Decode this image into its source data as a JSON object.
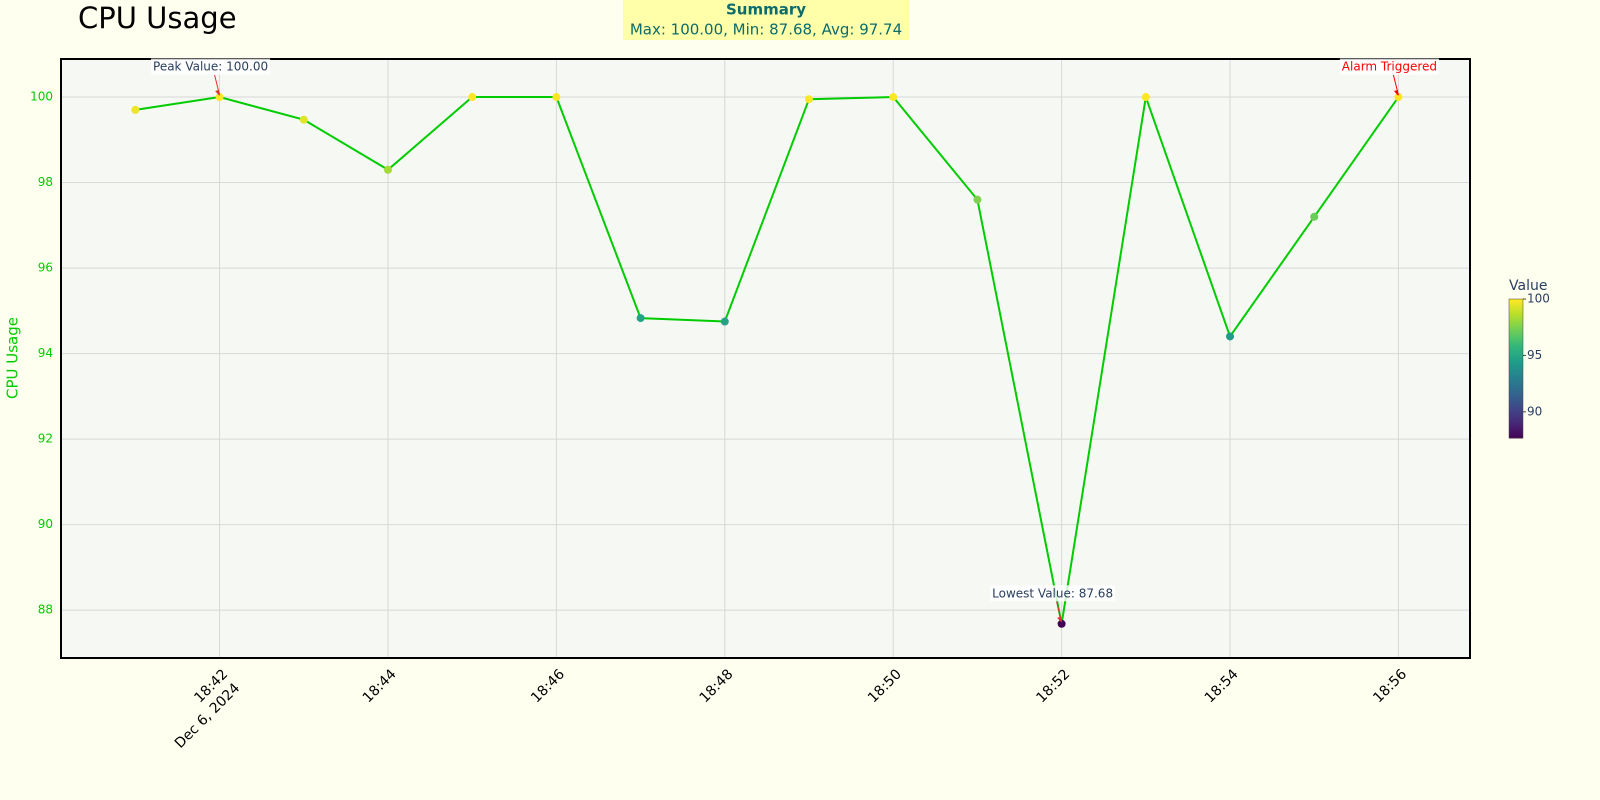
{
  "chart_data": {
    "type": "line",
    "title": "CPU Usage",
    "summary": {
      "title": "Summary",
      "text": "Max: 100.00, Min: 87.68, Avg: 97.74"
    },
    "y_label": "CPU Usage",
    "x": [
      "18:41",
      "18:42",
      "18:43",
      "18:44",
      "18:45",
      "18:46",
      "18:47",
      "18:48",
      "18:49",
      "18:50",
      "18:51",
      "18:52",
      "18:53",
      "18:54",
      "18:55",
      "18:56"
    ],
    "x_date_label": "Dec 6, 2024",
    "series": [
      {
        "name": "CPU Usage",
        "color": "#00cc00",
        "values": [
          99.7,
          100.0,
          99.47,
          98.3,
          100.0,
          100.0,
          94.83,
          94.75,
          99.95,
          100.0,
          97.6,
          87.68,
          100.0,
          94.4,
          97.2,
          100.0
        ]
      }
    ],
    "xlim": [
      "18:40:07",
      "18:56:51"
    ],
    "xticks": [
      "18:42",
      "18:44",
      "18:46",
      "18:48",
      "18:50",
      "18:52",
      "18:54",
      "18:56"
    ],
    "ylim": [
      86.88,
      100.89
    ],
    "yticks": [
      88,
      90,
      92,
      94,
      96,
      98,
      100
    ],
    "grid": true,
    "colorbar": {
      "title": "Value",
      "colorscale": "Viridis",
      "range": [
        87.68,
        100
      ],
      "ticks": [
        90,
        95,
        100
      ]
    },
    "annotations": [
      {
        "text": "Peak Value: 100.00",
        "x": "18:42",
        "y": 100.0,
        "color": "#2a3f5f"
      },
      {
        "text": "Lowest Value: 87.68",
        "x": "18:52",
        "y": 87.68,
        "color": "#2a3f5f"
      },
      {
        "text": "Alarm Triggered",
        "x": "18:56",
        "y": 100.0,
        "color": "#ff0000"
      }
    ]
  }
}
